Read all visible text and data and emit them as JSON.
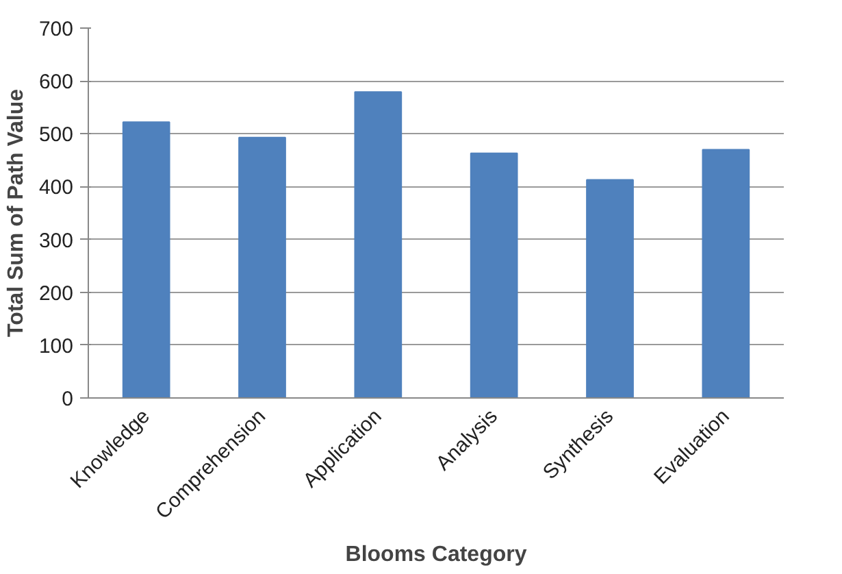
{
  "chart_data": {
    "type": "bar",
    "xlabel": "Blooms Category",
    "ylabel": "Total Sum of Path Value",
    "categories": [
      "Knowledge",
      "Comprehension",
      "Application",
      "Analysis",
      "Synthesis",
      "Evaluation"
    ],
    "values": [
      522,
      493,
      579,
      463,
      413,
      470
    ],
    "color": "#4f81bd",
    "ylim": [
      0,
      700
    ],
    "yticks": [
      0,
      100,
      200,
      300,
      400,
      500,
      600,
      700
    ],
    "grid": "y"
  }
}
